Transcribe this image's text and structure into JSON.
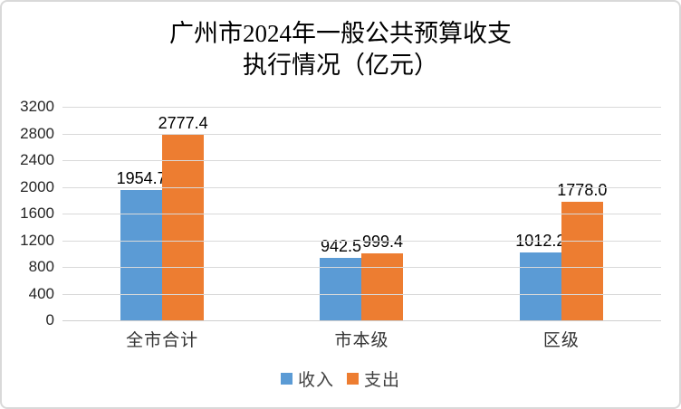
{
  "title": {
    "line1": "广州市2024年一般公共预算收支",
    "line2": "执行情况（亿元）"
  },
  "chart_data": {
    "type": "bar",
    "title": "广州市2024年一般公共预算收支执行情况（亿元）",
    "categories": [
      "全市合计",
      "市本级",
      "区级"
    ],
    "series": [
      {
        "name": "收入",
        "color": "#5B9BD5",
        "values": [
          1954.7,
          942.5,
          1012.2
        ]
      },
      {
        "name": "支出",
        "color": "#ED7D31",
        "values": [
          2777.4,
          999.4,
          1778.0
        ]
      }
    ],
    "ylim": [
      0,
      3200
    ],
    "ytick_step": 400,
    "yticks": [
      3200,
      2800,
      2400,
      2000,
      1600,
      1200,
      800,
      400,
      0
    ],
    "grid": true,
    "legend_position": "bottom",
    "data_labels": true,
    "data_label_decimals": 1
  },
  "colors": {
    "grid": "#d9d9d9",
    "border": "#d9d9d9",
    "data_label_text": "#000000",
    "axis_text": "#262626",
    "category_text": "#333333",
    "legend_text": "#404040",
    "background": "#ffffff"
  }
}
